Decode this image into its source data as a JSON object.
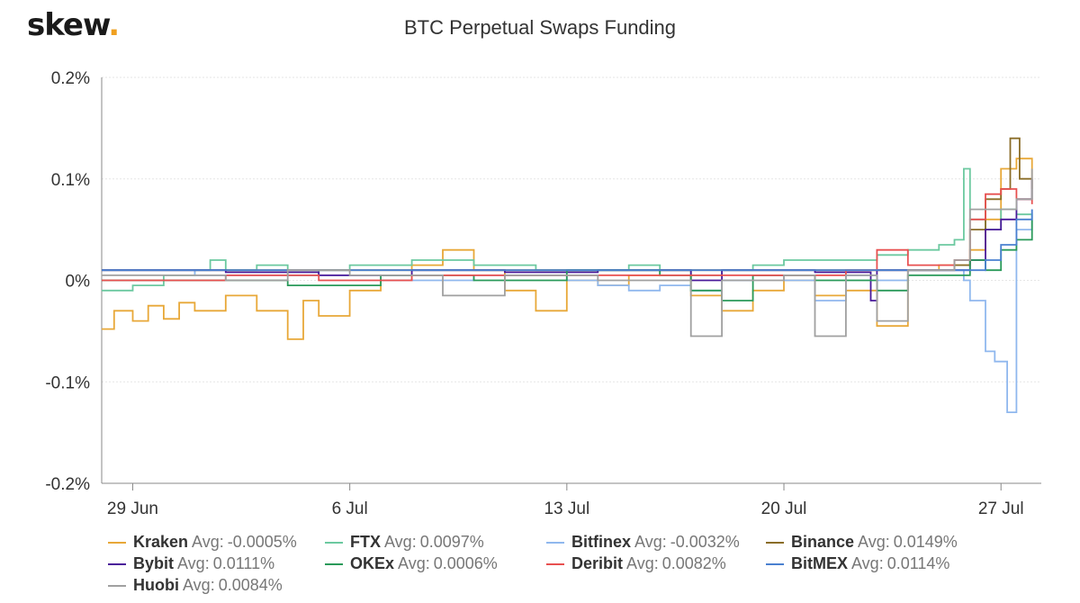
{
  "header": {
    "logo_text": "skew",
    "logo_dot": "."
  },
  "chart_data": {
    "type": "line",
    "title": "BTC Perpetual Swaps Funding",
    "xlabel": "",
    "ylabel": "",
    "x_tick_labels": [
      "29 Jun",
      "6 Jul",
      "13 Jul",
      "20 Jul",
      "27 Jul"
    ],
    "x_tick_days": [
      0,
      7,
      14,
      21,
      28
    ],
    "xlim": [
      -1,
      29.3
    ],
    "ylim": [
      -0.2,
      0.2
    ],
    "y_ticks": [
      0.2,
      0.1,
      0,
      -0.1,
      -0.2
    ],
    "y_tick_labels": [
      "0.2%",
      "0.1%",
      "0%",
      "-0.1%",
      "-0.2%"
    ],
    "grid": true,
    "legend_position": "bottom",
    "avg_label": "Avg:",
    "series": [
      {
        "name": "Kraken",
        "avg": "-0.0005%",
        "color": "#e8a838",
        "points": [
          [
            -1,
            -0.048
          ],
          [
            -0.6,
            -0.03
          ],
          [
            0,
            -0.04
          ],
          [
            0.5,
            -0.025
          ],
          [
            1,
            -0.038
          ],
          [
            1.5,
            -0.022
          ],
          [
            2,
            -0.03
          ],
          [
            3,
            -0.015
          ],
          [
            4,
            -0.03
          ],
          [
            5,
            -0.058
          ],
          [
            5.5,
            -0.02
          ],
          [
            6,
            -0.035
          ],
          [
            7,
            -0.01
          ],
          [
            8,
            0
          ],
          [
            9,
            0.015
          ],
          [
            10,
            0.03
          ],
          [
            11,
            0.01
          ],
          [
            12,
            -0.01
          ],
          [
            13,
            -0.03
          ],
          [
            14,
            0.0
          ],
          [
            15,
            -0.005
          ],
          [
            16,
            0.005
          ],
          [
            17,
            0.01
          ],
          [
            18,
            -0.015
          ],
          [
            19,
            -0.03
          ],
          [
            20,
            -0.01
          ],
          [
            21,
            0.0
          ],
          [
            22,
            -0.015
          ],
          [
            23,
            -0.01
          ],
          [
            24,
            -0.045
          ],
          [
            25,
            0.01
          ],
          [
            26,
            0.015
          ],
          [
            27,
            0.03
          ],
          [
            27.5,
            0.06
          ],
          [
            28,
            0.11
          ],
          [
            28.5,
            0.12
          ],
          [
            29,
            0.09
          ]
        ]
      },
      {
        "name": "FTX",
        "avg": "0.0097%",
        "color": "#6cc9a0",
        "points": [
          [
            -1,
            -0.01
          ],
          [
            0,
            -0.005
          ],
          [
            1,
            0.005
          ],
          [
            2,
            0.01
          ],
          [
            2.5,
            0.02
          ],
          [
            3,
            0.01
          ],
          [
            4,
            0.015
          ],
          [
            5,
            0.005
          ],
          [
            6,
            0.01
          ],
          [
            7,
            0.015
          ],
          [
            8,
            0.015
          ],
          [
            9,
            0.02
          ],
          [
            10,
            0.02
          ],
          [
            11,
            0.015
          ],
          [
            12,
            0.015
          ],
          [
            13,
            0.01
          ],
          [
            14,
            0.01
          ],
          [
            15,
            0.01
          ],
          [
            16,
            0.015
          ],
          [
            17,
            0.01
          ],
          [
            18,
            0.005
          ],
          [
            19,
            0.01
          ],
          [
            20,
            0.015
          ],
          [
            21,
            0.02
          ],
          [
            22,
            0.02
          ],
          [
            23,
            0.02
          ],
          [
            24,
            0.025
          ],
          [
            25,
            0.03
          ],
          [
            26,
            0.035
          ],
          [
            26.5,
            0.04
          ],
          [
            26.8,
            0.11
          ],
          [
            27,
            0.06
          ],
          [
            27.5,
            0.05
          ],
          [
            28,
            0.07
          ],
          [
            28.5,
            0.065
          ],
          [
            29,
            0.06
          ]
        ]
      },
      {
        "name": "Bitfinex",
        "avg": "-0.0032%",
        "color": "#90b8ee",
        "points": [
          [
            -1,
            0.01
          ],
          [
            2,
            0.005
          ],
          [
            5,
            0.005
          ],
          [
            8,
            0.0
          ],
          [
            11,
            0.005
          ],
          [
            14,
            0.0
          ],
          [
            15,
            -0.005
          ],
          [
            16,
            -0.01
          ],
          [
            17,
            -0.005
          ],
          [
            18,
            -0.01
          ],
          [
            19,
            0.0
          ],
          [
            20,
            0.005
          ],
          [
            21,
            0.0
          ],
          [
            22,
            -0.02
          ],
          [
            23,
            0.005
          ],
          [
            24,
            0.0
          ],
          [
            25,
            0.01
          ],
          [
            26,
            0.01
          ],
          [
            26.8,
            0.0
          ],
          [
            27,
            -0.02
          ],
          [
            27.5,
            -0.07
          ],
          [
            27.8,
            -0.08
          ],
          [
            28.2,
            -0.13
          ],
          [
            28.5,
            0.05
          ],
          [
            29,
            0.07
          ]
        ]
      },
      {
        "name": "Binance",
        "avg": "0.0149%",
        "color": "#8a6d28",
        "points": [
          [
            -1,
            0.01
          ],
          [
            5,
            0.01
          ],
          [
            10,
            0.01
          ],
          [
            15,
            0.01
          ],
          [
            20,
            0.01
          ],
          [
            25,
            0.01
          ],
          [
            26.5,
            0.015
          ],
          [
            27,
            0.05
          ],
          [
            27.5,
            0.08
          ],
          [
            28,
            0.09
          ],
          [
            28.3,
            0.14
          ],
          [
            28.6,
            0.1
          ],
          [
            29,
            0.08
          ]
        ]
      },
      {
        "name": "Bybit",
        "avg": "0.0111%",
        "color": "#4a1a9a",
        "points": [
          [
            -1,
            0.01
          ],
          [
            3,
            0.008
          ],
          [
            6,
            0.005
          ],
          [
            9,
            0.01
          ],
          [
            12,
            0.008
          ],
          [
            15,
            0.01
          ],
          [
            18,
            0.0
          ],
          [
            19,
            0.01
          ],
          [
            22,
            0.008
          ],
          [
            23.8,
            -0.02
          ],
          [
            24,
            0.01
          ],
          [
            26,
            0.01
          ],
          [
            27,
            0.02
          ],
          [
            27.5,
            0.05
          ],
          [
            28,
            0.06
          ],
          [
            28.5,
            0.08
          ],
          [
            29,
            0.1
          ]
        ]
      },
      {
        "name": "OKEx",
        "avg": "0.0006%",
        "color": "#2a9a5a",
        "points": [
          [
            -1,
            0.0
          ],
          [
            2,
            0.0
          ],
          [
            5,
            -0.005
          ],
          [
            8,
            0.005
          ],
          [
            11,
            0.0
          ],
          [
            14,
            0.01
          ],
          [
            17,
            0.005
          ],
          [
            18,
            -0.01
          ],
          [
            19,
            -0.02
          ],
          [
            20,
            0.005
          ],
          [
            22,
            0.0
          ],
          [
            24,
            -0.01
          ],
          [
            25,
            0.005
          ],
          [
            26.5,
            0.005
          ],
          [
            27,
            0.02
          ],
          [
            27.5,
            0.01
          ],
          [
            28,
            0.03
          ],
          [
            28.5,
            0.04
          ],
          [
            29,
            0.06
          ]
        ]
      },
      {
        "name": "Deribit",
        "avg": "0.0082%",
        "color": "#e85050",
        "points": [
          [
            -1,
            0.0
          ],
          [
            3,
            0.005
          ],
          [
            6,
            0.0
          ],
          [
            9,
            0.005
          ],
          [
            12,
            0.005
          ],
          [
            15,
            0.005
          ],
          [
            18,
            0.005
          ],
          [
            21,
            0.005
          ],
          [
            23,
            0.01
          ],
          [
            24,
            0.03
          ],
          [
            25,
            0.015
          ],
          [
            26.5,
            0.02
          ],
          [
            27,
            0.06
          ],
          [
            27.5,
            0.085
          ],
          [
            28,
            0.09
          ],
          [
            28.5,
            0.08
          ],
          [
            29,
            0.075
          ]
        ]
      },
      {
        "name": "BitMEX",
        "avg": "0.0114%",
        "color": "#4a80d0",
        "points": [
          [
            -1,
            0.01
          ],
          [
            5,
            0.01
          ],
          [
            10,
            0.01
          ],
          [
            15,
            0.01
          ],
          [
            20,
            0.01
          ],
          [
            25,
            0.01
          ],
          [
            27,
            0.01
          ],
          [
            27.5,
            0.02
          ],
          [
            28,
            0.035
          ],
          [
            28.5,
            0.06
          ],
          [
            29,
            0.07
          ]
        ]
      },
      {
        "name": "Huobi",
        "avg": "0.0084%",
        "color": "#a0a0a0",
        "points": [
          [
            -1,
            0.005
          ],
          [
            3,
            0.0
          ],
          [
            5,
            0.01
          ],
          [
            7,
            0.005
          ],
          [
            10,
            -0.015
          ],
          [
            12,
            0.005
          ],
          [
            15,
            0.0
          ],
          [
            18,
            -0.055
          ],
          [
            19,
            0.0
          ],
          [
            21,
            0.005
          ],
          [
            22,
            -0.055
          ],
          [
            23,
            0.005
          ],
          [
            24,
            -0.04
          ],
          [
            25,
            0.01
          ],
          [
            26.5,
            0.02
          ],
          [
            27,
            0.07
          ],
          [
            27.5,
            0.07
          ],
          [
            28,
            0.07
          ],
          [
            28.5,
            0.08
          ],
          [
            29,
            0.11
          ]
        ]
      }
    ]
  }
}
